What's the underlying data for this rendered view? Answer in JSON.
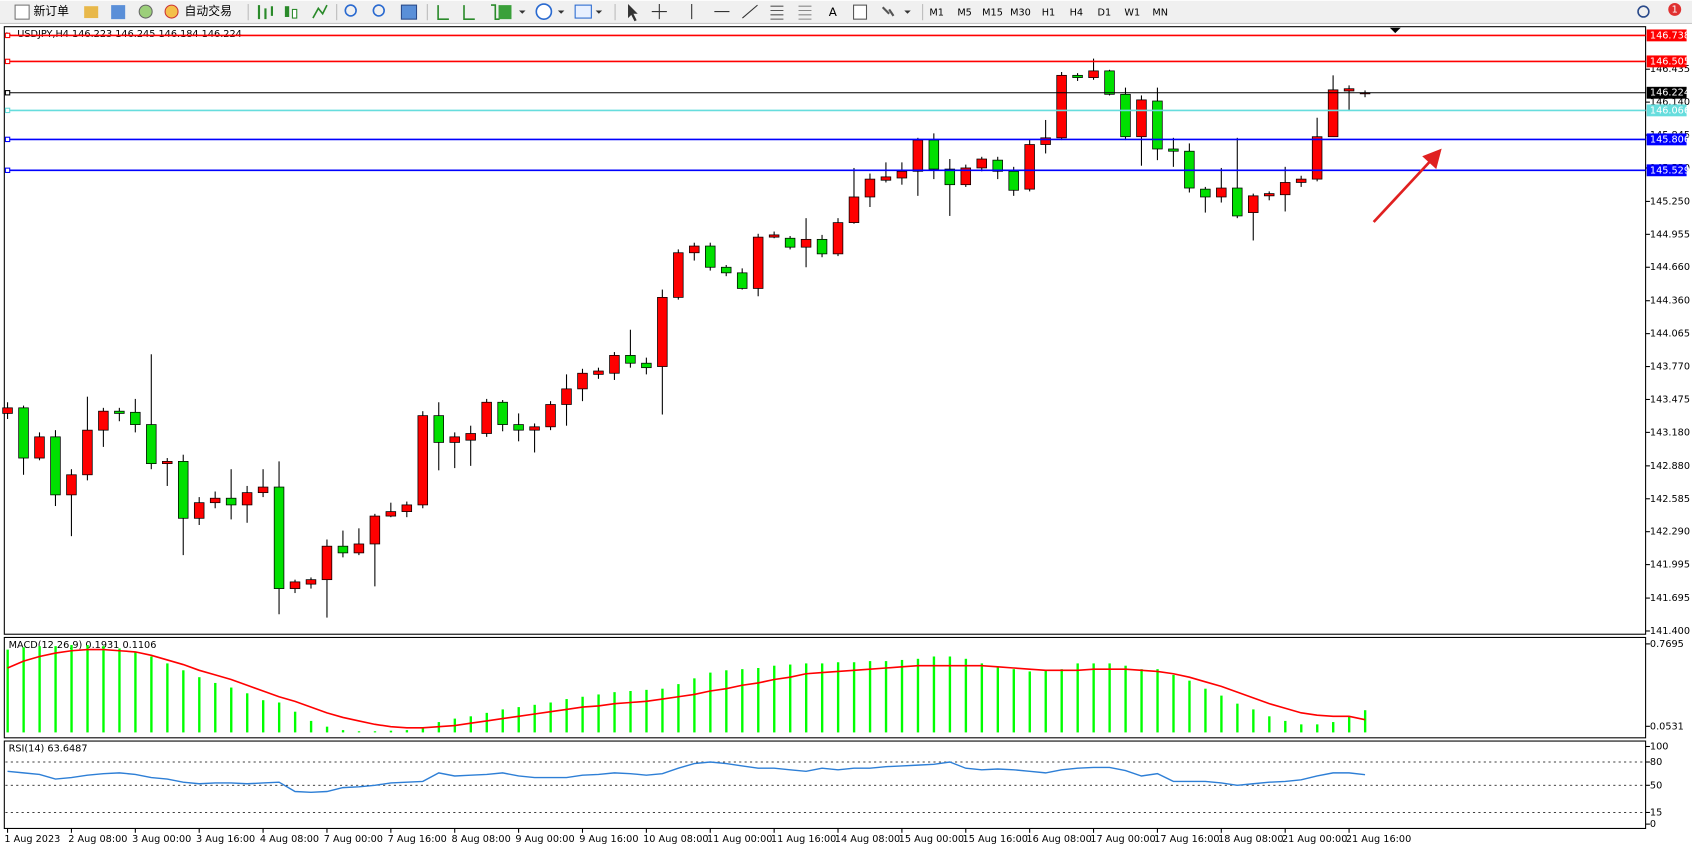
{
  "toolbar": {
    "new_order": "新订单",
    "auto_trading": "自动交易",
    "timeframes": [
      "M1",
      "M5",
      "M15",
      "M30",
      "H1",
      "H4",
      "D1",
      "W1",
      "MN"
    ],
    "notifications": "1"
  },
  "chart_data": [
    {
      "type": "candlestick",
      "header": "USDJPY,H4  146.223 146.245 146.184 146.224",
      "up_color": "#ff0000",
      "down_color": "#00e000",
      "categories": [
        "1 Aug 2023",
        null,
        null,
        null,
        "2 Aug 08:00",
        null,
        null,
        null,
        "3 Aug 00:00",
        null,
        null,
        null,
        "3 Aug 16:00",
        null,
        null,
        null,
        "4 Aug 08:00",
        null,
        null,
        null,
        "7 Aug 00:00",
        null,
        null,
        null,
        "7 Aug 16:00",
        null,
        null,
        null,
        "8 Aug 08:00",
        null,
        null,
        null,
        "9 Aug 00:00",
        null,
        null,
        null,
        "9 Aug 16:00",
        null,
        null,
        null,
        "10 Aug 08:00",
        null,
        null,
        null,
        "11 Aug 00:00",
        null,
        null,
        null,
        "11 Aug 16:00",
        null,
        null,
        null,
        "14 Aug 08:00",
        null,
        null,
        null,
        "15 Aug 00:00",
        null,
        null,
        null,
        "15 Aug 16:00",
        null,
        null,
        null,
        "16 Aug 08:00",
        null,
        null,
        null,
        "17 Aug 00:00",
        null,
        null,
        null,
        "17 Aug 16:00",
        null,
        null,
        null,
        "18 Aug 08:00",
        null,
        null,
        null,
        "21 Aug 00:00",
        null,
        null,
        null,
        "21 Aug 16:00",
        null
      ],
      "open": [
        143.35,
        143.4,
        142.95,
        143.14,
        142.62,
        142.8,
        143.2,
        143.37,
        143.36,
        143.25,
        142.9,
        142.92,
        142.41,
        142.55,
        142.59,
        142.53,
        142.64,
        142.69,
        141.78,
        141.82,
        141.86,
        142.16,
        142.1,
        142.18,
        142.43,
        142.47,
        142.53,
        143.33,
        143.09,
        143.11,
        143.17,
        143.45,
        143.25,
        143.2,
        143.23,
        143.43,
        143.57,
        143.7,
        143.71,
        143.87,
        143.8,
        143.77,
        144.39,
        144.79,
        144.85,
        144.66,
        144.61,
        144.47,
        144.93,
        144.92,
        144.84,
        144.91,
        144.78,
        145.06,
        145.29,
        145.44,
        145.46,
        145.52,
        145.8,
        145.54,
        145.4,
        145.55,
        145.62,
        145.52,
        145.36,
        145.76,
        145.82,
        146.38,
        146.36,
        146.42,
        146.21,
        145.83,
        146.15,
        145.72,
        145.7,
        145.36,
        145.29,
        145.37,
        145.15,
        145.3,
        145.31,
        145.42,
        145.45,
        145.83,
        146.24,
        146.223
      ],
      "high": [
        143.45,
        143.42,
        143.18,
        143.2,
        142.85,
        143.5,
        143.4,
        143.4,
        143.48,
        143.88,
        142.95,
        142.98,
        142.6,
        142.65,
        142.85,
        142.7,
        142.85,
        142.92,
        141.86,
        141.88,
        142.22,
        142.3,
        142.32,
        142.45,
        142.55,
        142.56,
        143.37,
        143.45,
        143.18,
        143.24,
        143.48,
        143.47,
        143.35,
        143.26,
        143.46,
        143.7,
        143.75,
        143.76,
        143.9,
        144.1,
        143.85,
        144.46,
        144.82,
        144.88,
        144.88,
        144.68,
        144.65,
        144.96,
        144.98,
        144.94,
        145.1,
        144.95,
        145.1,
        145.55,
        145.5,
        145.6,
        145.6,
        145.82,
        145.86,
        145.63,
        145.58,
        145.65,
        145.65,
        145.56,
        145.8,
        145.98,
        146.41,
        146.4,
        146.53,
        146.43,
        146.27,
        146.2,
        146.27,
        145.82,
        145.77,
        145.38,
        145.55,
        145.82,
        145.32,
        145.34,
        145.56,
        145.48,
        146.0,
        146.38,
        146.29,
        146.245
      ],
      "low": [
        143.3,
        142.8,
        142.93,
        142.52,
        142.25,
        142.75,
        143.05,
        143.28,
        143.18,
        142.85,
        142.7,
        142.08,
        142.35,
        142.5,
        142.4,
        142.37,
        142.6,
        141.55,
        141.74,
        141.78,
        141.52,
        142.06,
        142.08,
        141.8,
        142.42,
        142.42,
        142.5,
        142.84,
        142.86,
        142.88,
        143.14,
        143.19,
        143.1,
        143.0,
        143.2,
        143.24,
        143.46,
        143.66,
        143.65,
        143.76,
        143.7,
        143.34,
        144.37,
        144.72,
        144.63,
        144.58,
        144.46,
        144.4,
        144.92,
        144.82,
        144.66,
        144.75,
        144.76,
        145.05,
        145.2,
        145.42,
        145.4,
        145.3,
        145.45,
        145.12,
        145.38,
        145.52,
        145.45,
        145.3,
        145.34,
        145.68,
        145.8,
        146.33,
        146.34,
        146.2,
        145.8,
        145.57,
        145.62,
        145.56,
        145.33,
        145.15,
        145.24,
        145.1,
        144.9,
        145.26,
        145.16,
        145.38,
        145.43,
        145.83,
        146.06,
        146.184
      ],
      "close": [
        143.4,
        142.95,
        143.14,
        142.62,
        142.8,
        143.2,
        143.37,
        143.35,
        143.25,
        142.9,
        142.92,
        142.41,
        142.55,
        142.59,
        142.53,
        142.64,
        142.69,
        141.78,
        141.84,
        141.86,
        142.16,
        142.1,
        142.18,
        142.43,
        142.47,
        142.53,
        143.33,
        143.09,
        143.14,
        143.17,
        143.45,
        143.25,
        143.2,
        143.23,
        143.43,
        143.57,
        143.71,
        143.73,
        143.87,
        143.8,
        143.76,
        144.39,
        144.79,
        144.85,
        144.66,
        144.61,
        144.47,
        144.93,
        144.95,
        144.84,
        144.91,
        144.78,
        145.06,
        145.29,
        145.45,
        145.47,
        145.52,
        145.8,
        145.54,
        145.4,
        145.55,
        145.63,
        145.52,
        145.35,
        145.76,
        145.82,
        146.38,
        146.36,
        146.42,
        146.21,
        145.83,
        146.16,
        145.72,
        145.7,
        145.37,
        145.29,
        145.37,
        145.12,
        145.3,
        145.32,
        145.42,
        145.45,
        145.83,
        146.25,
        146.26,
        146.224
      ],
      "ylim": [
        141.371,
        146.816
      ],
      "yticks": [
        146.435,
        {
          "value": 146.14,
          "label": "146.140"
        },
        145.845,
        {
          "value": 145.55,
          "label": "145.550"
        },
        {
          "value": 145.25,
          "label": "145.250"
        },
        144.955,
        {
          "value": 144.66,
          "label": "144.660"
        },
        {
          "value": 144.36,
          "label": "144.360"
        },
        144.065,
        {
          "value": 143.77,
          "label": "143.770"
        },
        143.475,
        {
          "value": 143.18,
          "label": "143.180"
        },
        {
          "value": 142.88,
          "label": "142.880"
        },
        142.585,
        {
          "value": 142.29,
          "label": "142.290"
        },
        141.995,
        141.695,
        {
          "value": 141.4,
          "label": "141.400"
        }
      ],
      "levels": [
        {
          "value": 146.738,
          "color": "#ff0000"
        },
        {
          "value": 146.505,
          "color": "#ff0000"
        },
        {
          "value": 146.224,
          "color": "#000000"
        },
        {
          "value": 146.066,
          "color": "#66dddd"
        },
        {
          "value": 145.806,
          "color": "#0000ff"
        },
        {
          "value": 145.529,
          "color": "#0000ff"
        }
      ]
    },
    {
      "type": "macd",
      "header": "MACD(12,26,9) 0.1931 0.1106",
      "histogram": {
        "color": "#00ff00",
        "values": [
          0.72,
          0.74,
          0.75,
          0.75,
          0.76,
          0.76,
          0.75,
          0.73,
          0.7,
          0.66,
          0.6,
          0.54,
          0.48,
          0.43,
          0.39,
          0.34,
          0.28,
          0.26,
          0.18,
          0.1,
          0.05,
          0.02,
          0.01,
          0.01,
          0.015,
          0.02,
          0.04,
          0.09,
          0.12,
          0.14,
          0.17,
          0.2,
          0.22,
          0.24,
          0.26,
          0.29,
          0.31,
          0.33,
          0.35,
          0.36,
          0.37,
          0.38,
          0.42,
          0.47,
          0.52,
          0.54,
          0.55,
          0.56,
          0.58,
          0.59,
          0.6,
          0.6,
          0.61,
          0.61,
          0.62,
          0.62,
          0.63,
          0.64,
          0.66,
          0.66,
          0.64,
          0.6,
          0.57,
          0.55,
          0.53,
          0.54,
          0.55,
          0.6,
          0.6,
          0.6,
          0.58,
          0.55,
          0.55,
          0.5,
          0.45,
          0.38,
          0.32,
          0.25,
          0.2,
          0.14,
          0.1,
          0.07,
          0.07,
          0.09,
          0.14,
          0.1931
        ]
      },
      "signal": {
        "color": "#ff0000",
        "values": [
          0.56,
          0.62,
          0.66,
          0.69,
          0.71,
          0.72,
          0.72,
          0.71,
          0.7,
          0.67,
          0.63,
          0.59,
          0.54,
          0.5,
          0.46,
          0.41,
          0.36,
          0.31,
          0.27,
          0.22,
          0.17,
          0.13,
          0.1,
          0.07,
          0.05,
          0.04,
          0.04,
          0.05,
          0.06,
          0.08,
          0.1,
          0.12,
          0.14,
          0.16,
          0.18,
          0.2,
          0.22,
          0.23,
          0.25,
          0.26,
          0.27,
          0.29,
          0.31,
          0.33,
          0.36,
          0.38,
          0.41,
          0.43,
          0.46,
          0.48,
          0.51,
          0.52,
          0.53,
          0.54,
          0.55,
          0.56,
          0.57,
          0.58,
          0.58,
          0.58,
          0.58,
          0.58,
          0.57,
          0.56,
          0.55,
          0.54,
          0.54,
          0.54,
          0.55,
          0.55,
          0.55,
          0.54,
          0.53,
          0.51,
          0.48,
          0.44,
          0.4,
          0.35,
          0.3,
          0.25,
          0.21,
          0.17,
          0.15,
          0.14,
          0.14,
          0.1106
        ]
      },
      "ylim": [
        -0.047,
        0.8255
      ],
      "yticks": [
        0.7695,
        0.0531
      ]
    },
    {
      "type": "line",
      "header": "RSI(14) 63.6487",
      "color": "#2e7fd6",
      "values": [
        68,
        66,
        64,
        58,
        60,
        63,
        65,
        66,
        64,
        60,
        58,
        54,
        52,
        53,
        53,
        52,
        53,
        54,
        42,
        41,
        42,
        47,
        48,
        50,
        53,
        54,
        55,
        66,
        62,
        63,
        64,
        66,
        62,
        60,
        60,
        60,
        63,
        64,
        66,
        65,
        63,
        65,
        72,
        78,
        80,
        78,
        75,
        72,
        72,
        70,
        68,
        72,
        70,
        72,
        72,
        74,
        75,
        76,
        77,
        80,
        72,
        70,
        71,
        70,
        68,
        66,
        70,
        72,
        73,
        73,
        69,
        62,
        65,
        55,
        55,
        55,
        53,
        50,
        52,
        54,
        55,
        57,
        62,
        66,
        66,
        63.6487
      ],
      "ylim": [
        -5.6,
        107
      ],
      "yticks": [
        100,
        80,
        50,
        15,
        0
      ],
      "levels": [
        80,
        50,
        15
      ]
    }
  ]
}
